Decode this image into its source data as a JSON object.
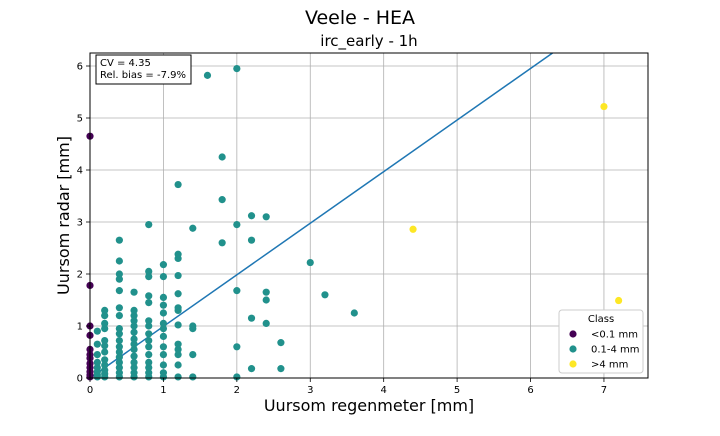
{
  "chart_data": {
    "type": "scatter",
    "suptitle": "Veele - HEA",
    "title": "irc_early - 1h",
    "xlabel": "Uursom regenmeter [mm]",
    "ylabel": "Uursom radar [mm]",
    "xlim": [
      0,
      7.6
    ],
    "ylim": [
      0,
      6.25
    ],
    "xticks": [
      0,
      1,
      2,
      3,
      4,
      5,
      6,
      7
    ],
    "yticks": [
      0,
      1,
      2,
      3,
      4,
      5,
      6
    ],
    "grid": true,
    "stats": {
      "cv": "CV = 4.35",
      "bias": "Rel. bias = -7.9%"
    },
    "legend": {
      "title": "Class",
      "position": "bottom-right"
    },
    "fit_line": {
      "x": [
        0,
        6.3
      ],
      "y": [
        0,
        6.25
      ],
      "color": "#1f77b4"
    },
    "series": [
      {
        "name": "<0.1 mm",
        "color": "#440154",
        "points": [
          [
            0,
            4.65
          ],
          [
            0,
            1.78
          ],
          [
            0,
            1.0
          ],
          [
            0,
            0.82
          ],
          [
            0,
            0.55
          ],
          [
            0,
            0.45
          ],
          [
            0,
            0.38
          ],
          [
            0,
            0.28
          ],
          [
            0,
            0.2
          ],
          [
            0,
            0.12
          ],
          [
            0,
            0.06
          ],
          [
            0,
            0.02
          ]
        ]
      },
      {
        "name": "0.1-4 mm",
        "color": "#21918c",
        "points": [
          [
            0.1,
            0.02
          ],
          [
            0.1,
            0.06
          ],
          [
            0.1,
            0.12
          ],
          [
            0.1,
            0.2
          ],
          [
            0.1,
            0.3
          ],
          [
            0.1,
            0.45
          ],
          [
            0.1,
            0.65
          ],
          [
            0.1,
            0.9
          ],
          [
            0.2,
            0.02
          ],
          [
            0.2,
            0.08
          ],
          [
            0.2,
            0.15
          ],
          [
            0.2,
            0.25
          ],
          [
            0.2,
            0.35
          ],
          [
            0.2,
            0.5
          ],
          [
            0.2,
            0.62
          ],
          [
            0.2,
            0.72
          ],
          [
            0.2,
            0.95
          ],
          [
            0.2,
            1.05
          ],
          [
            0.2,
            1.2
          ],
          [
            0.2,
            1.3
          ],
          [
            0.4,
            0.02
          ],
          [
            0.4,
            0.1
          ],
          [
            0.4,
            0.2
          ],
          [
            0.4,
            0.3
          ],
          [
            0.4,
            0.4
          ],
          [
            0.4,
            0.5
          ],
          [
            0.4,
            0.6
          ],
          [
            0.4,
            0.72
          ],
          [
            0.4,
            0.85
          ],
          [
            0.4,
            0.95
          ],
          [
            0.4,
            1.2
          ],
          [
            0.4,
            1.35
          ],
          [
            0.4,
            1.68
          ],
          [
            0.4,
            1.9
          ],
          [
            0.4,
            2.0
          ],
          [
            0.4,
            2.25
          ],
          [
            0.4,
            2.65
          ],
          [
            0.6,
            0.02
          ],
          [
            0.6,
            0.1
          ],
          [
            0.6,
            0.2
          ],
          [
            0.6,
            0.3
          ],
          [
            0.6,
            0.42
          ],
          [
            0.6,
            0.55
          ],
          [
            0.6,
            0.65
          ],
          [
            0.6,
            0.75
          ],
          [
            0.6,
            0.88
          ],
          [
            0.6,
            1.0
          ],
          [
            0.6,
            1.1
          ],
          [
            0.6,
            1.2
          ],
          [
            0.6,
            1.3
          ],
          [
            0.6,
            1.65
          ],
          [
            0.8,
            0.02
          ],
          [
            0.8,
            0.1
          ],
          [
            0.8,
            0.2
          ],
          [
            0.8,
            0.3
          ],
          [
            0.8,
            0.45
          ],
          [
            0.8,
            0.6
          ],
          [
            0.8,
            0.72
          ],
          [
            0.8,
            0.85
          ],
          [
            0.8,
            1.0
          ],
          [
            0.8,
            1.1
          ],
          [
            0.8,
            1.45
          ],
          [
            0.8,
            1.58
          ],
          [
            0.8,
            1.95
          ],
          [
            0.8,
            2.05
          ],
          [
            0.8,
            2.95
          ],
          [
            1.0,
            0.02
          ],
          [
            1.0,
            0.1
          ],
          [
            1.0,
            0.25
          ],
          [
            1.0,
            0.45
          ],
          [
            1.0,
            0.6
          ],
          [
            1.0,
            0.8
          ],
          [
            1.0,
            0.95
          ],
          [
            1.0,
            1.05
          ],
          [
            1.0,
            1.25
          ],
          [
            1.0,
            1.4
          ],
          [
            1.0,
            1.55
          ],
          [
            1.0,
            1.95
          ],
          [
            1.0,
            2.18
          ],
          [
            1.2,
            0.02
          ],
          [
            1.2,
            0.25
          ],
          [
            1.2,
            0.45
          ],
          [
            1.2,
            0.55
          ],
          [
            1.2,
            0.65
          ],
          [
            1.2,
            1.02
          ],
          [
            1.2,
            1.3
          ],
          [
            1.2,
            1.35
          ],
          [
            1.2,
            1.62
          ],
          [
            1.2,
            1.97
          ],
          [
            1.2,
            2.3
          ],
          [
            1.2,
            2.38
          ],
          [
            1.2,
            3.72
          ],
          [
            1.4,
            0.02
          ],
          [
            1.4,
            0.45
          ],
          [
            1.4,
            0.95
          ],
          [
            1.4,
            1.0
          ],
          [
            1.4,
            2.88
          ],
          [
            1.6,
            5.82
          ],
          [
            1.8,
            2.6
          ],
          [
            1.8,
            3.43
          ],
          [
            1.8,
            4.25
          ],
          [
            2.0,
            0.02
          ],
          [
            2.0,
            0.6
          ],
          [
            2.0,
            1.68
          ],
          [
            2.0,
            2.95
          ],
          [
            2.0,
            5.95
          ],
          [
            2.2,
            0.18
          ],
          [
            2.2,
            1.15
          ],
          [
            2.2,
            2.65
          ],
          [
            2.2,
            3.12
          ],
          [
            2.4,
            1.05
          ],
          [
            2.4,
            1.5
          ],
          [
            2.4,
            1.65
          ],
          [
            2.4,
            3.1
          ],
          [
            2.6,
            0.18
          ],
          [
            2.6,
            0.68
          ],
          [
            3.0,
            2.22
          ],
          [
            3.2,
            1.6
          ],
          [
            3.6,
            1.25
          ]
        ]
      },
      {
        "name": ">4 mm",
        "color": "#fde725",
        "points": [
          [
            4.4,
            2.86
          ],
          [
            7.0,
            5.22
          ],
          [
            7.2,
            1.49
          ]
        ]
      }
    ]
  }
}
